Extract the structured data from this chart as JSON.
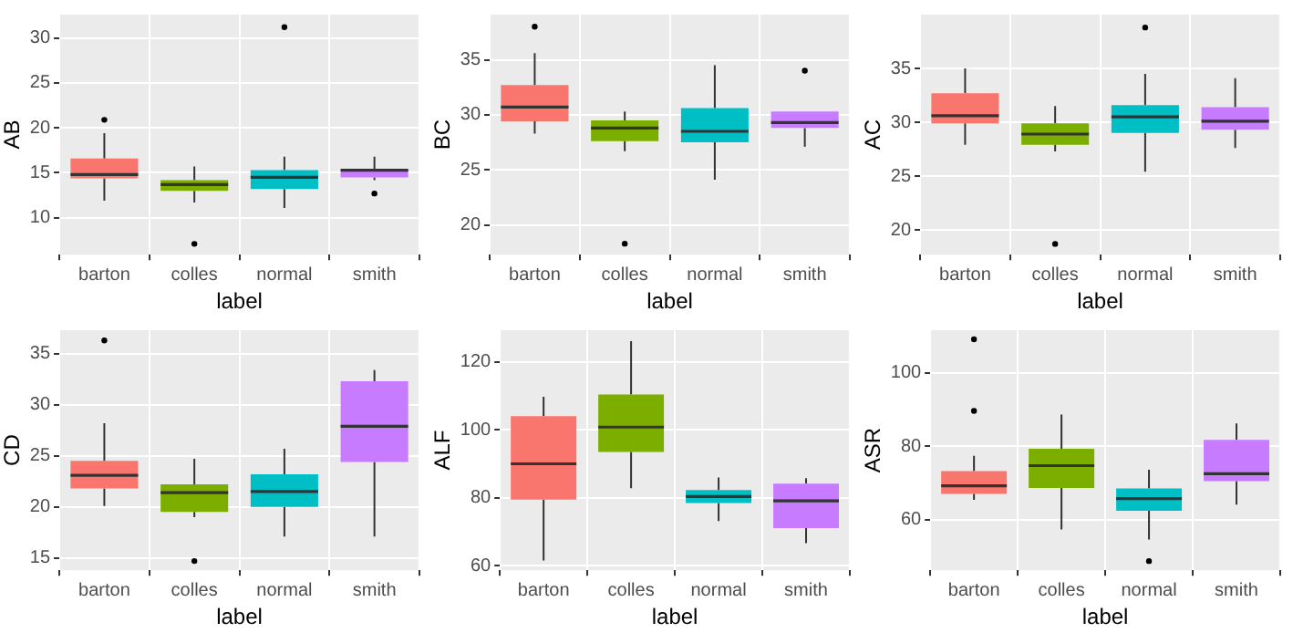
{
  "chart_data": [
    {
      "type": "box",
      "xlabel": "label",
      "ylabel": "AB",
      "categories": [
        "barton",
        "colles",
        "normal",
        "smith"
      ],
      "colors": [
        "#f8766d",
        "#7cae00",
        "#00bfc4",
        "#c77cff"
      ],
      "ylim": [
        5.9,
        32.6
      ],
      "yticks": [
        10,
        15,
        20,
        25,
        30
      ],
      "grid": true,
      "boxes": [
        {
          "low": 11.9,
          "q1": 14.4,
          "median": 14.8,
          "q3": 16.6,
          "high": 19.4,
          "outliers": [
            20.9
          ]
        },
        {
          "low": 11.7,
          "q1": 13.0,
          "median": 13.7,
          "q3": 14.2,
          "high": 15.7,
          "outliers": [
            7.1
          ]
        },
        {
          "low": 11.1,
          "q1": 13.2,
          "median": 14.5,
          "q3": 15.3,
          "high": 16.8,
          "outliers": [
            31.2
          ]
        },
        {
          "low": 14.2,
          "q1": 14.5,
          "median": 15.3,
          "q3": 15.4,
          "high": 16.8,
          "outliers": [
            12.7
          ]
        }
      ]
    },
    {
      "type": "box",
      "xlabel": "label",
      "ylabel": "BC",
      "categories": [
        "barton",
        "colles",
        "normal",
        "smith"
      ],
      "colors": [
        "#f8766d",
        "#7cae00",
        "#00bfc4",
        "#c77cff"
      ],
      "ylim": [
        17.3,
        39.1
      ],
      "yticks": [
        20,
        25,
        30,
        35
      ],
      "grid": true,
      "boxes": [
        {
          "low": 28.3,
          "q1": 29.4,
          "median": 30.7,
          "q3": 32.7,
          "high": 35.6,
          "outliers": [
            38.0
          ]
        },
        {
          "low": 26.7,
          "q1": 27.6,
          "median": 28.8,
          "q3": 29.5,
          "high": 30.3,
          "outliers": [
            18.3
          ]
        },
        {
          "low": 24.1,
          "q1": 27.5,
          "median": 28.5,
          "q3": 30.6,
          "high": 34.5
        },
        {
          "low": 27.1,
          "q1": 28.8,
          "median": 29.3,
          "q3": 30.3,
          "high": 30.3,
          "outliers": [
            34.0
          ]
        }
      ]
    },
    {
      "type": "box",
      "xlabel": "label",
      "ylabel": "AC",
      "categories": [
        "barton",
        "colles",
        "normal",
        "smith"
      ],
      "colors": [
        "#f8766d",
        "#7cae00",
        "#00bfc4",
        "#c77cff"
      ],
      "ylim": [
        17.7,
        40.0
      ],
      "yticks": [
        20,
        25,
        30,
        35
      ],
      "grid": true,
      "boxes": [
        {
          "low": 27.9,
          "q1": 29.9,
          "median": 30.6,
          "q3": 32.7,
          "high": 35.0
        },
        {
          "low": 27.3,
          "q1": 27.9,
          "median": 28.9,
          "q3": 29.9,
          "high": 31.5,
          "outliers": [
            18.7
          ]
        },
        {
          "low": 25.4,
          "q1": 29.0,
          "median": 30.5,
          "q3": 31.6,
          "high": 34.5,
          "outliers": [
            38.8
          ]
        },
        {
          "low": 27.6,
          "q1": 29.3,
          "median": 30.1,
          "q3": 31.4,
          "high": 34.1
        }
      ]
    },
    {
      "type": "box",
      "xlabel": "label",
      "ylabel": "CD",
      "categories": [
        "barton",
        "colles",
        "normal",
        "smith"
      ],
      "colors": [
        "#f8766d",
        "#7cae00",
        "#00bfc4",
        "#c77cff"
      ],
      "ylim": [
        13.8,
        37.3
      ],
      "yticks": [
        15,
        20,
        25,
        30,
        35
      ],
      "grid": true,
      "boxes": [
        {
          "low": 20.1,
          "q1": 21.8,
          "median": 23.1,
          "q3": 24.5,
          "high": 28.2,
          "outliers": [
            36.3
          ]
        },
        {
          "low": 19.0,
          "q1": 19.5,
          "median": 21.4,
          "q3": 22.2,
          "high": 24.7,
          "outliers": [
            14.7
          ]
        },
        {
          "low": 17.1,
          "q1": 20.0,
          "median": 21.5,
          "q3": 23.2,
          "high": 25.7
        },
        {
          "low": 17.1,
          "q1": 24.4,
          "median": 27.9,
          "q3": 32.3,
          "high": 33.4
        }
      ]
    },
    {
      "type": "box",
      "xlabel": "label",
      "ylabel": "ALF",
      "categories": [
        "barton",
        "colles",
        "normal",
        "smith"
      ],
      "colors": [
        "#f8766d",
        "#7cae00",
        "#00bfc4",
        "#c77cff"
      ],
      "ylim": [
        58.7,
        129.3
      ],
      "yticks": [
        60,
        80,
        100,
        120
      ],
      "grid": true,
      "boxes": [
        {
          "low": 61.6,
          "q1": 79.5,
          "median": 90.0,
          "q3": 104.0,
          "high": 109.7
        },
        {
          "low": 82.8,
          "q1": 93.5,
          "median": 100.8,
          "q3": 110.4,
          "high": 126.1
        },
        {
          "low": 73.2,
          "q1": 78.5,
          "median": 80.4,
          "q3": 82.3,
          "high": 86.0
        },
        {
          "low": 66.7,
          "q1": 71.1,
          "median": 79.1,
          "q3": 84.2,
          "high": 85.8
        }
      ]
    },
    {
      "type": "box",
      "xlabel": "label",
      "ylabel": "ASR",
      "categories": [
        "barton",
        "colles",
        "normal",
        "smith"
      ],
      "colors": [
        "#f8766d",
        "#7cae00",
        "#00bfc4",
        "#c77cff"
      ],
      "ylim": [
        46.2,
        111.6
      ],
      "yticks": [
        60,
        80,
        100
      ],
      "grid": true,
      "boxes": [
        {
          "low": 65.4,
          "q1": 67.0,
          "median": 69.2,
          "q3": 73.2,
          "high": 77.4,
          "outliers": [
            109.1,
            89.6
          ]
        },
        {
          "low": 57.3,
          "q1": 68.6,
          "median": 74.7,
          "q3": 79.3,
          "high": 88.6
        },
        {
          "low": 54.6,
          "q1": 62.4,
          "median": 65.7,
          "q3": 68.5,
          "high": 73.6,
          "outliers": [
            48.7
          ]
        },
        {
          "low": 64.1,
          "q1": 70.5,
          "median": 72.5,
          "q3": 81.7,
          "high": 86.2
        }
      ]
    }
  ]
}
